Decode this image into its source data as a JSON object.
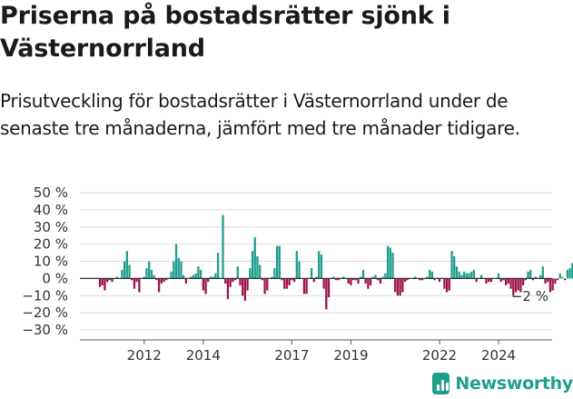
{
  "header": {
    "title": "Priserna på bostadsrätter sjönk i Västernorrland",
    "subtitle": "Prisutveckling för bostadsrätter i Västernorrland under de senaste tre månaderna, jämfört med tre månader tidigare."
  },
  "brand": {
    "name": "Newsworthy",
    "color": "#1f9e8e",
    "icon": "newsworthy-logo-icon"
  },
  "chart_data": {
    "type": "bar",
    "title": "",
    "xlabel": "",
    "ylabel": "",
    "unit": "%",
    "ylim": [
      -30,
      50
    ],
    "yticks": [
      50,
      40,
      30,
      20,
      10,
      0,
      -10,
      -20,
      -30
    ],
    "ytick_labels": [
      "50 %",
      "40 %",
      "30 %",
      "20 %",
      "10 %",
      "0 %",
      "−10 %",
      "−20 %",
      "−30 %"
    ],
    "xticks": [
      "2012",
      "2014",
      "2017",
      "2019",
      "2022",
      "2024"
    ],
    "grid": true,
    "colors": {
      "positive": "#1f9e8e",
      "negative": "#a0134e"
    },
    "last_value_label": "−2 %",
    "period": {
      "start": "2011-01",
      "end": "2025-01",
      "frequency": "monthly"
    },
    "values": [
      -5,
      -4,
      -7,
      -2,
      -1,
      -2,
      0,
      1,
      0,
      5,
      10,
      16,
      8,
      -1,
      -6,
      -2,
      -8,
      0,
      1,
      6,
      10,
      5,
      2,
      -1,
      -8,
      -3,
      -2,
      -1,
      0,
      4,
      10,
      20,
      12,
      10,
      2,
      -3,
      0,
      1,
      2,
      3,
      7,
      5,
      -7,
      -9,
      -2,
      1,
      1,
      3,
      15,
      0,
      37,
      -3,
      -12,
      -5,
      -2,
      -1,
      7,
      -4,
      -10,
      -13,
      -7,
      6,
      16,
      24,
      13,
      8,
      -1,
      -9,
      -7,
      0,
      1,
      6,
      19,
      19,
      -1,
      -6,
      -6,
      -4,
      -1,
      -2,
      16,
      10,
      0,
      -9,
      -9,
      0,
      6,
      -2,
      1,
      16,
      14,
      -6,
      -18,
      -11,
      0,
      1,
      -1,
      -1,
      0,
      1,
      0,
      -3,
      -4,
      -1,
      -1,
      -3,
      1,
      5,
      -3,
      -6,
      -4,
      1,
      2,
      -1,
      -3,
      1,
      3,
      19,
      18,
      15,
      -8,
      -10,
      -10,
      -8,
      -2,
      -1,
      0,
      0,
      1,
      0,
      -1,
      -1,
      0,
      1,
      5,
      4,
      -1,
      0,
      -2,
      0,
      -6,
      -8,
      -7,
      16,
      13,
      7,
      4,
      2,
      4,
      3,
      3,
      4,
      5,
      -2,
      0,
      2,
      0,
      -3,
      -2,
      -2,
      0,
      0,
      3,
      -2,
      -1,
      -4,
      -3,
      -6,
      -10,
      -8,
      -7,
      -8,
      -4,
      -1,
      4,
      5,
      -1,
      1,
      0,
      2,
      7,
      -3,
      -2,
      -8,
      -7,
      -3,
      -1,
      3,
      1,
      -1,
      5,
      6,
      9,
      7,
      5,
      2,
      -2,
      -3,
      -3,
      -2,
      -2,
      -2
    ]
  }
}
